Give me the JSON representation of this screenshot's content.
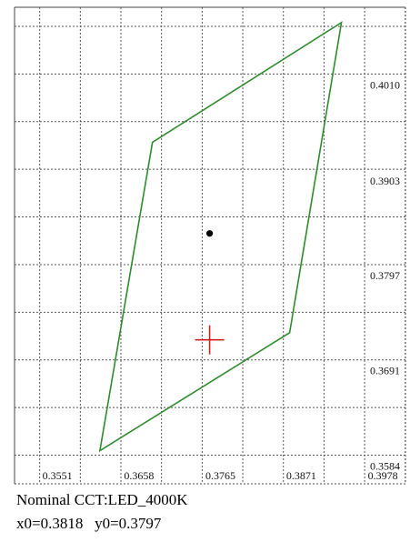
{
  "chart_data": {
    "type": "scatter",
    "title": "",
    "x_ticks": [
      "0.3551",
      "0.3658",
      "0.3765",
      "0.3871",
      "0.3978"
    ],
    "y_ticks": [
      "0.4010",
      "0.3903",
      "0.3797",
      "0.3691",
      "0.3584"
    ],
    "xlim": [
      0.3518,
      0.4031
    ],
    "ylim": [
      0.3552,
      0.4085
    ],
    "grid": true,
    "quadrilateral": {
      "color": "#2e8b2e",
      "points": [
        {
          "x": 0.3947,
          "y": 0.4068
        },
        {
          "x": 0.3879,
          "y": 0.3721
        },
        {
          "x": 0.363,
          "y": 0.3589
        },
        {
          "x": 0.3699,
          "y": 0.3934
        }
      ]
    },
    "center_point": {
      "x": 0.3774,
      "y": 0.3832,
      "color": "#000000"
    },
    "target_marker": {
      "x": 0.3774,
      "y": 0.3713,
      "color": "#cc2222"
    }
  },
  "info": {
    "line1": "Nominal CCT:LED_4000K",
    "line2": "x0=0.3818   y0=0.3797"
  }
}
